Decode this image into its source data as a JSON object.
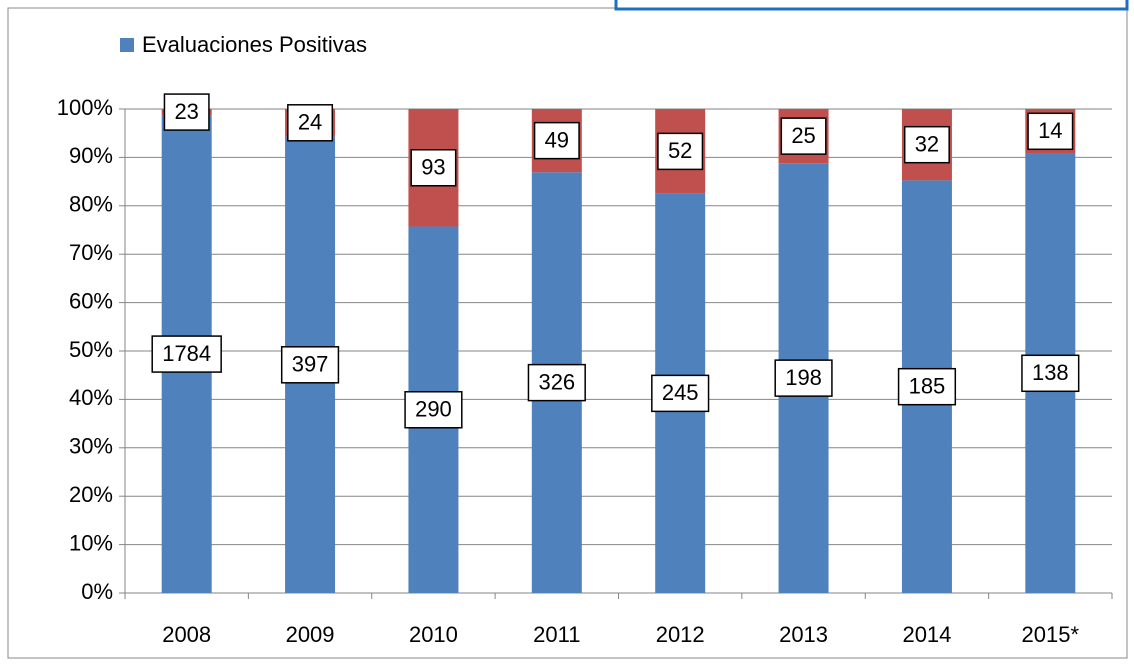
{
  "chart_data": {
    "type": "stacked_bar_percent",
    "categories": [
      "2008",
      "2009",
      "2010",
      "2011",
      "2012",
      "2013",
      "2014",
      "2015*"
    ],
    "series": [
      {
        "name": "Evaluaciones Positivas",
        "color": "#4f81bd",
        "values": [
          1784,
          397,
          290,
          326,
          245,
          198,
          185,
          138
        ]
      },
      {
        "color": "#c0504d",
        "values": [
          23,
          24,
          93,
          49,
          52,
          25,
          32,
          14
        ]
      }
    ],
    "ylim": [
      0,
      100
    ],
    "yticks": [
      {
        "value": 0,
        "label": "0%"
      },
      {
        "value": 10,
        "label": "10%"
      },
      {
        "value": 20,
        "label": "20%"
      },
      {
        "value": 30,
        "label": "30%"
      },
      {
        "value": 40,
        "label": "40%"
      },
      {
        "value": 50,
        "label": "50%"
      },
      {
        "value": 60,
        "label": "60%"
      },
      {
        "value": 70,
        "label": "70%"
      },
      {
        "value": 80,
        "label": "80%"
      },
      {
        "value": 90,
        "label": "90%"
      },
      {
        "value": 100,
        "label": "100%"
      }
    ],
    "grid": true,
    "legend": "top-left"
  }
}
